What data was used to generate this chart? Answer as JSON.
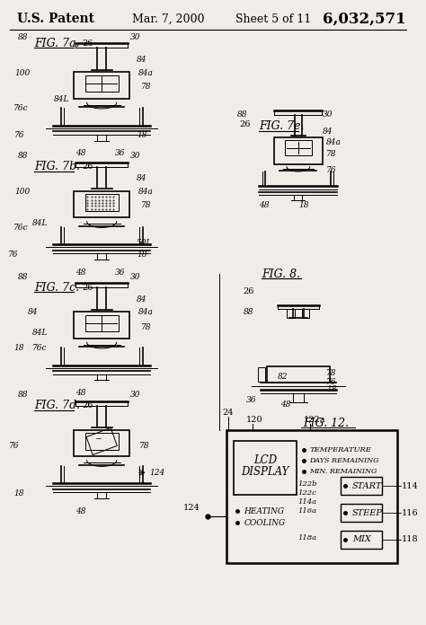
{
  "background_color": "#f5f5f0",
  "page_bg": "#f0ede8",
  "header_text": "U.S. Patent",
  "header_date": "Mar. 7, 2000",
  "header_sheet": "Sheet 5 of 11",
  "header_patent": "6,032,571"
}
